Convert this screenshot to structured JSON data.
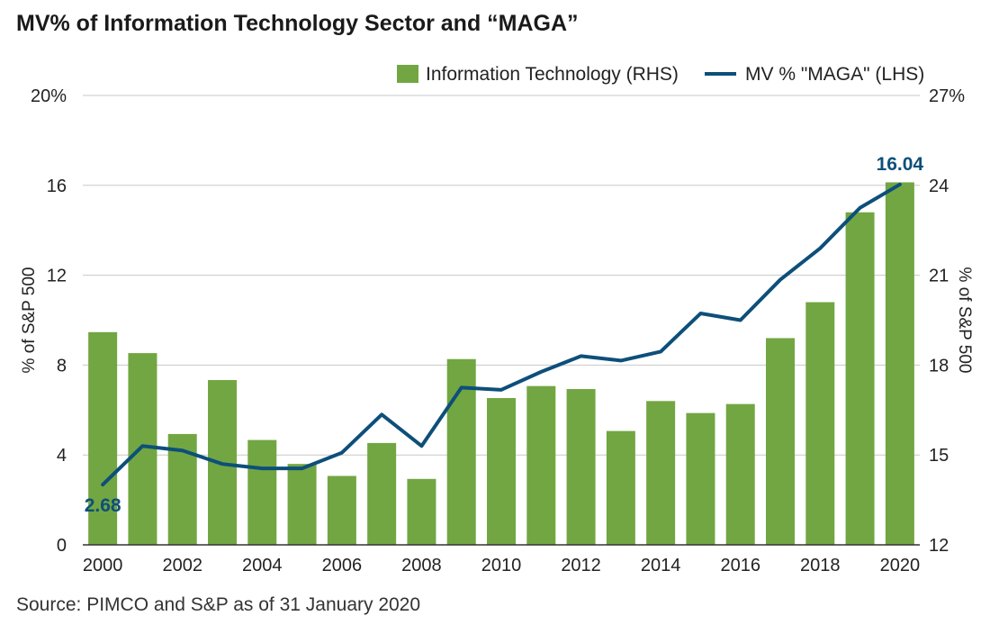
{
  "title": "MV% of Information Technology Sector and “MAGA”",
  "source": "Source: PIMCO and S&P as of 31 January 2020",
  "colors": {
    "bar": "#72a642",
    "line": "#0d4f7a",
    "grid": "#c8c8c8",
    "axis": "#333333",
    "label": "#0d4f7a"
  },
  "chart_data": {
    "type": "bar+line",
    "categories": [
      "2000",
      "2001",
      "2002",
      "2003",
      "2004",
      "2005",
      "2006",
      "2007",
      "2008",
      "2009",
      "2010",
      "2011",
      "2012",
      "2013",
      "2014",
      "2015",
      "2016",
      "2017",
      "2018",
      "2019",
      "2020"
    ],
    "x_tick_labels": [
      "2000",
      "",
      "2002",
      "",
      "2004",
      "",
      "2006",
      "",
      "2008",
      "",
      "2010",
      "",
      "2012",
      "",
      "2014",
      "",
      "2016",
      "",
      "2018",
      "",
      "2020"
    ],
    "series": [
      {
        "name": "Information Technology (RHS)",
        "type": "bar",
        "axis": "right",
        "values": [
          19.1,
          18.4,
          15.7,
          17.5,
          15.5,
          14.7,
          14.3,
          15.4,
          14.2,
          18.2,
          16.9,
          17.3,
          17.2,
          15.8,
          16.8,
          16.4,
          16.7,
          18.9,
          20.1,
          23.1,
          24.1
        ]
      },
      {
        "name": "MV % \"MAGA\" (LHS)",
        "type": "line",
        "axis": "left",
        "values": [
          2.68,
          4.4,
          4.2,
          3.6,
          3.4,
          3.4,
          4.1,
          5.8,
          4.4,
          7.0,
          6.9,
          7.7,
          8.4,
          8.2,
          8.6,
          10.3,
          10.0,
          11.8,
          13.2,
          15.0,
          16.04
        ]
      }
    ],
    "left_axis": {
      "label": "% of S&P 500",
      "ticks": [
        "0",
        "4",
        "8",
        "12",
        "16",
        "20%"
      ],
      "tick_values": [
        0,
        4,
        8,
        12,
        16,
        20
      ],
      "range": [
        0,
        20
      ]
    },
    "right_axis": {
      "label": "% of S&P 500",
      "ticks": [
        "12",
        "15",
        "18",
        "21",
        "24",
        "27%"
      ],
      "tick_values": [
        12,
        15,
        18,
        21,
        24,
        27
      ],
      "range": [
        12,
        27
      ]
    },
    "annotations": [
      {
        "text": "2.68",
        "series": 1,
        "index": 0,
        "position": "below"
      },
      {
        "text": "16.04",
        "series": 1,
        "index": 20,
        "position": "above"
      }
    ],
    "grid": "horizontal",
    "legend_position": "top-right"
  }
}
